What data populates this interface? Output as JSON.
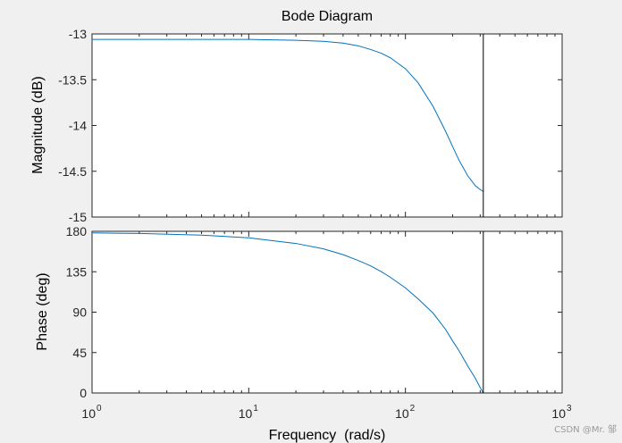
{
  "chart_data": {
    "type": "line",
    "title": "Bode Diagram",
    "xlabel": "Frequency  (rad/s)",
    "x_scale": "log",
    "xlim": [
      1,
      1000
    ],
    "x_ticks": [
      {
        "value": 1,
        "base": "10",
        "exp": "0"
      },
      {
        "value": 10,
        "base": "10",
        "exp": "1"
      },
      {
        "value": 100,
        "base": "10",
        "exp": "2"
      },
      {
        "value": 1000,
        "base": "10",
        "exp": "3"
      }
    ],
    "line_color": "#0072bd",
    "marker_color": "#000000",
    "marker_x": 314,
    "panels": [
      {
        "name": "magnitude",
        "ylabel": "Magnitude (dB)",
        "ylim": [
          -15,
          -13
        ],
        "yticks": [
          -15,
          -14.5,
          -14,
          -13.5,
          -13
        ],
        "ytick_labels": [
          "-15",
          "-14.5",
          "-14",
          "-13.5",
          "-13"
        ],
        "series": [
          {
            "x": [
              1,
              2,
              5,
              10,
              20,
              30,
              40,
              50,
              60,
              70,
              80,
              100,
              120,
              150,
              180,
              200,
              220,
              250,
              280,
              300,
              314
            ],
            "y": [
              -13.06,
              -13.06,
              -13.06,
              -13.06,
              -13.07,
              -13.08,
              -13.1,
              -13.13,
              -13.17,
              -13.21,
              -13.26,
              -13.38,
              -13.53,
              -13.79,
              -14.06,
              -14.23,
              -14.38,
              -14.55,
              -14.66,
              -14.7,
              -14.72
            ]
          }
        ]
      },
      {
        "name": "phase",
        "ylabel": "Phase (deg)",
        "ylim": [
          0,
          180
        ],
        "yticks": [
          0,
          45,
          90,
          135,
          180
        ],
        "ytick_labels": [
          "0",
          "45",
          "90",
          "135",
          "180"
        ],
        "series": [
          {
            "x": [
              1,
              2,
              5,
              10,
              20,
              30,
              40,
              50,
              60,
              70,
              80,
              100,
              120,
              150,
              180,
              200,
              220,
              250,
              280,
              300,
              314
            ],
            "y": [
              178.2,
              177.6,
              175.8,
              172.8,
              166.5,
              160.5,
              154,
              147.5,
              141.5,
              135.2,
              128.9,
              117,
              105,
              89,
              71,
              58,
              47,
              30,
              16,
              6,
              0
            ]
          }
        ]
      }
    ]
  },
  "watermark": "CSDN @Mr. 邹"
}
